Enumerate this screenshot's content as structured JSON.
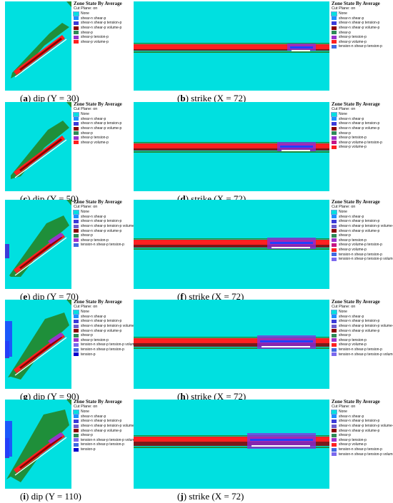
{
  "colors": {
    "background": "#00e0e0",
    "red": "#ff1a1a",
    "green": "#1f8f3a",
    "purple": "#8a2be2",
    "blue": "#2040ff",
    "white": "#ffffff"
  },
  "legend_title": "Zone State By Average",
  "legend_subtitle": "Cut Plane: on",
  "states": {
    "none": "None",
    "sn_sp": "shear-n shear-p",
    "sn_sp_tp": "shear-n shear-p tension-p",
    "sn_sp_vp": "shear-n shear-p volume-p",
    "sn_sp_tp_vp": "shear-n shear-p tension-p volume-p",
    "sp": "shear-p",
    "sp_tp": "shear-p tension-p",
    "sp_vp": "shear-p volume-p",
    "sp_vp_tp": "shear-p volume-p tension-p",
    "tn_sp_tp": "tension-n shear-p tension-p",
    "tn_sp_tp_vp": "tension-n shear-p tension-p volume-p",
    "tp": "tension-p"
  },
  "panels": [
    {
      "letter": "a",
      "caption": "dip (Y = 30)",
      "legend": [
        "None",
        "shear-n shear-p",
        "shear-n shear-p tension-p",
        "shear-n shear-p volume-p",
        "shear-p",
        "shear-p tension-p",
        "shear-p volume-p"
      ]
    },
    {
      "letter": "b",
      "caption": "strike (X = 72)",
      "legend": [
        "None",
        "shear-n shear-p",
        "shear-n shear-p tension-p",
        "shear-n shear-p volume-p",
        "shear-p",
        "shear-p tension-p",
        "shear-p volume-p",
        "tension-n shear-p tension-p"
      ]
    },
    {
      "letter": "c",
      "caption": "dip (Y = 50)",
      "legend": [
        "None",
        "shear-n shear-p",
        "shear-n shear-p tension-p",
        "shear-n shear-p volume-p",
        "shear-p",
        "shear-p tension-p",
        "shear-p volume-p"
      ]
    },
    {
      "letter": "d",
      "caption": "strike (X = 72)",
      "legend": [
        "None",
        "shear-n shear-p",
        "shear-n shear-p tension-p",
        "shear-n shear-p volume-p",
        "shear-p",
        "shear-p tension-p",
        "shear-p volume-p tension-p",
        "shear-p volume-p"
      ]
    },
    {
      "letter": "e",
      "caption": "dip (Y = 70)",
      "legend": [
        "None",
        "shear-n shear-p",
        "shear-n shear-p tension-p",
        "shear-n shear-p tension-p volume-p",
        "shear-n shear-p volume-p",
        "shear-p",
        "shear-p tension-p",
        "tension-n shear-p tension-p"
      ]
    },
    {
      "letter": "f",
      "caption": "strike (X = 72)",
      "legend": [
        "None",
        "shear-n shear-p",
        "shear-n shear-p tension-p",
        "shear-n shear-p tension-p volume-p",
        "shear-n shear-p volume-p",
        "shear-p",
        "shear-p tension-p",
        "shear-p volume-p tension-p",
        "shear-p volume-p",
        "tension-n shear-p tension-p",
        "tension-n shear-p tension-p volume-p"
      ]
    },
    {
      "letter": "g",
      "caption": "dip (Y = 90)",
      "legend": [
        "None",
        "shear-n shear-p",
        "shear-n shear-p tension-p",
        "shear-n shear-p tension-p volume-p",
        "shear-n shear-p volume-p",
        "shear-p",
        "shear-p tension-p",
        "tension-n shear-p tension-p volume-p",
        "tension-n shear-p tension-p",
        "tension-p"
      ]
    },
    {
      "letter": "h",
      "caption": "strike (X = 72)",
      "legend": [
        "None",
        "shear-n shear-p",
        "shear-n shear-p tension-p",
        "shear-n shear-p tension-p volume-p",
        "shear-n shear-p volume-p",
        "shear-p",
        "shear-p tension-p",
        "shear-p volume-p",
        "tension-n shear-p tension-p",
        "tension-n shear-p tension-p volume-p"
      ]
    },
    {
      "letter": "i",
      "caption": "dip (Y = 110)",
      "legend": [
        "None",
        "shear-n shear-p",
        "shear-n shear-p tension-p",
        "shear-n shear-p tension-p volume-p",
        "shear-n shear-p volume-p",
        "shear-p",
        "tension-n shear-p tension-p volume-p",
        "tension-n shear-p tension-p",
        "tension-p"
      ]
    },
    {
      "letter": "j",
      "caption": "strike (X = 72)",
      "legend": [
        "None",
        "shear-n shear-p",
        "shear-n shear-p tension-p",
        "shear-n shear-p tension-p volume-p",
        "shear-n shear-p volume-p",
        "shear-p",
        "shear-p tension-p",
        "shear-p volume-p",
        "tension-n shear-p tension-p",
        "tension-n shear-p tension-p volume-p"
      ]
    }
  ]
}
